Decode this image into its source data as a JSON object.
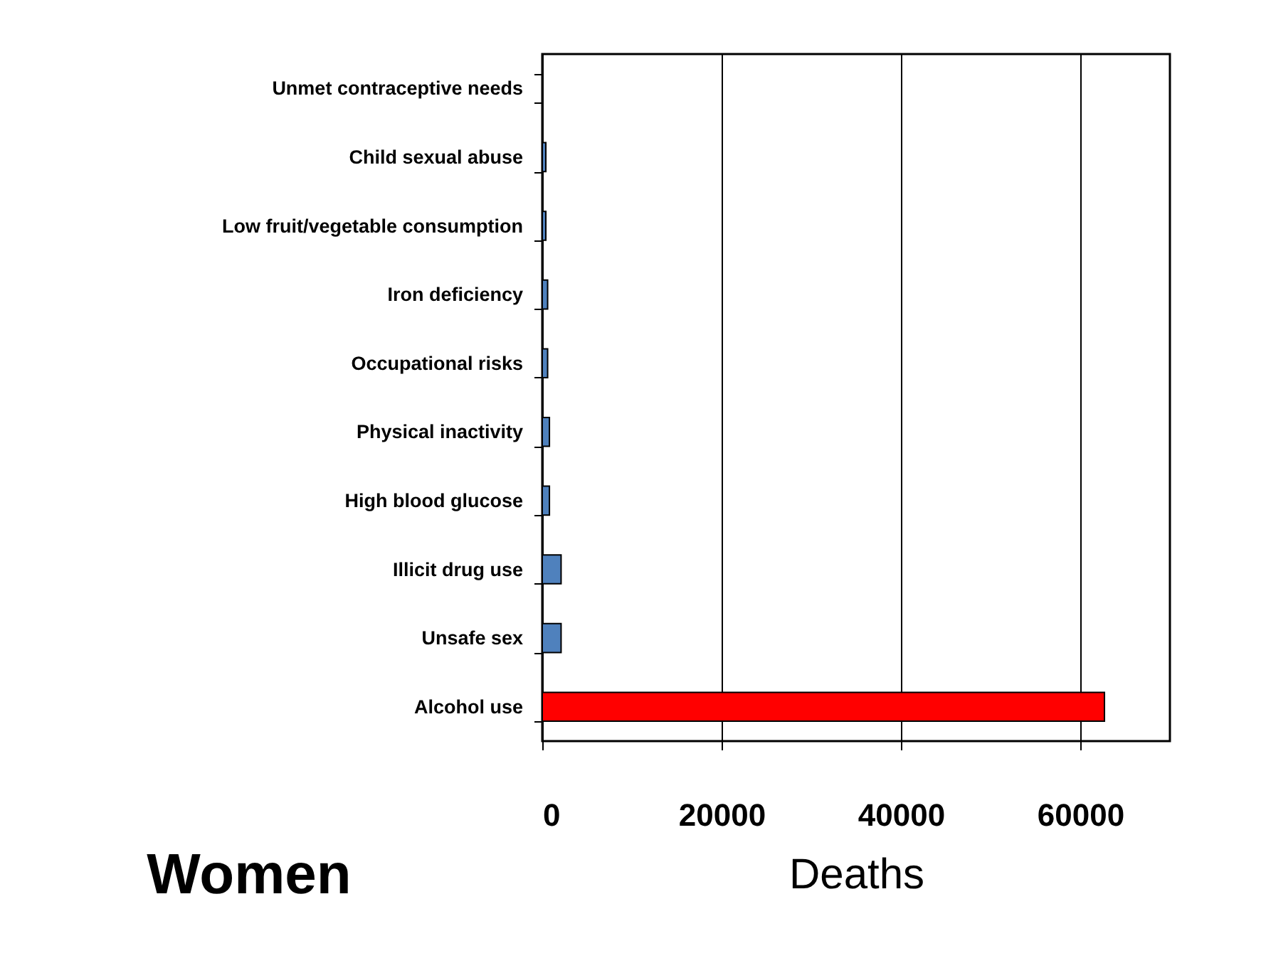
{
  "chart_data": {
    "type": "bar",
    "orientation": "horizontal",
    "categories": [
      "Unmet contraceptive needs",
      "Child sexual abuse",
      "Low fruit/vegetable consumption",
      "Iron deficiency",
      "Occupational risks",
      "Physical inactivity",
      "High blood glucose",
      "Illicit drug use",
      "Unsafe sex",
      "Alcohol use"
    ],
    "values": [
      null,
      400,
      400,
      600,
      600,
      800,
      800,
      2100,
      2100,
      62700
    ],
    "colors": [
      "#4f81bd",
      "#4f81bd",
      "#4f81bd",
      "#4f81bd",
      "#4f81bd",
      "#4f81bd",
      "#4f81bd",
      "#4f81bd",
      "#4f81bd",
      "#ff0000"
    ],
    "xlim": [
      0,
      70000
    ],
    "xticks": [
      0,
      20000,
      40000,
      60000
    ],
    "xlabel": "Deaths",
    "annotations": [
      "Women"
    ],
    "grid": "x"
  }
}
